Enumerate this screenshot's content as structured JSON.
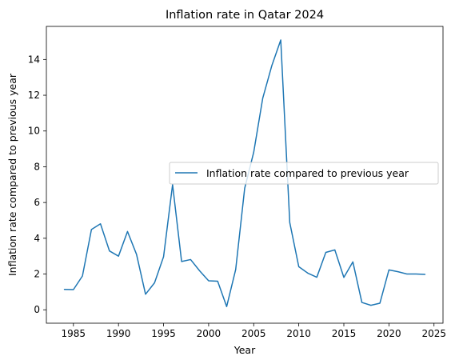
{
  "chart_data": {
    "type": "line",
    "title": "Inflation rate in Qatar 2024",
    "xlabel": "Year",
    "ylabel": "Inflation rate compared to previous year",
    "xlim": [
      1982,
      2026
    ],
    "ylim": [
      -0.75,
      15.85
    ],
    "xticks": [
      1985,
      1990,
      1995,
      2000,
      2005,
      2010,
      2015,
      2020,
      2025
    ],
    "yticks": [
      0,
      2,
      4,
      6,
      8,
      10,
      12,
      14
    ],
    "grid": false,
    "legend_position": "center-right",
    "series": [
      {
        "name": "Inflation rate compared to previous year",
        "color": "#1f77b4",
        "x": [
          1984,
          1985,
          1986,
          1987,
          1988,
          1989,
          1990,
          1991,
          1992,
          1993,
          1994,
          1995,
          1996,
          1997,
          1998,
          1999,
          2000,
          2001,
          2002,
          2003,
          2004,
          2005,
          2006,
          2007,
          2008,
          2009,
          2010,
          2011,
          2012,
          2013,
          2014,
          2015,
          2016,
          2017,
          2018,
          2019,
          2020,
          2021,
          2022,
          2023,
          2024
        ],
        "values": [
          1.14,
          1.13,
          1.89,
          4.49,
          4.81,
          3.29,
          3.0,
          4.38,
          3.1,
          0.87,
          1.51,
          2.97,
          7.0,
          2.7,
          2.81,
          2.18,
          1.62,
          1.6,
          0.18,
          2.25,
          6.8,
          8.81,
          11.83,
          13.64,
          15.09,
          4.88,
          2.41,
          2.05,
          1.82,
          3.21,
          3.35,
          1.81,
          2.68,
          0.41,
          0.25,
          0.37,
          2.23,
          2.13,
          2.0,
          2.0,
          1.98
        ]
      }
    ]
  }
}
